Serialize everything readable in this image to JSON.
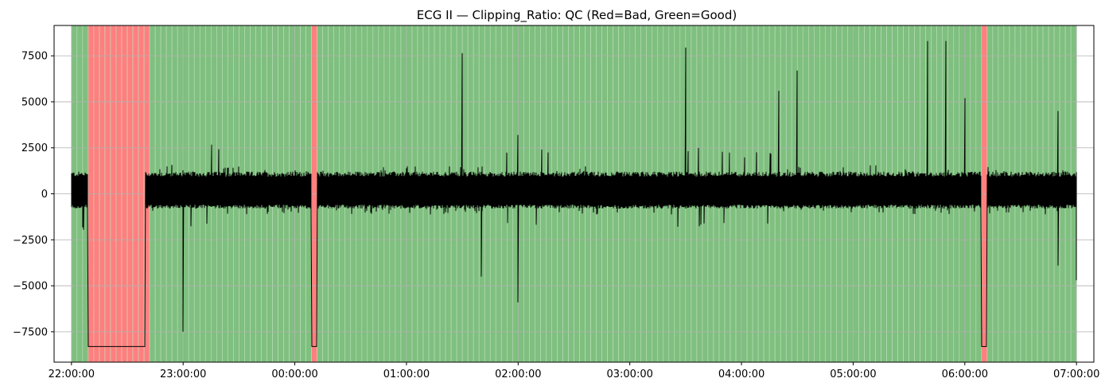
{
  "chart_data": {
    "type": "line",
    "title": "ECG II — Clipping_Ratio: QC (Red=Bad, Green=Good)",
    "xlabel": "",
    "ylabel": "",
    "x_start": "22:00:00",
    "x_end": "07:00:00",
    "xlim": [
      "21:50:40",
      "07:09:20"
    ],
    "ylim": [
      -9150,
      9150
    ],
    "x_ticks": [
      "22:00:00",
      "23:00:00",
      "00:00:00",
      "01:00:00",
      "02:00:00",
      "03:00:00",
      "04:00:00",
      "05:00:00",
      "06:00:00",
      "07:00:00"
    ],
    "y_ticks": [
      7500,
      5000,
      2500,
      0,
      -2500,
      -5000,
      -7500
    ],
    "y_tick_labels": [
      "7500",
      "5000",
      "2500",
      "0",
      "−2500",
      "−5000",
      "−7500"
    ],
    "grid": true,
    "segment_minutes": 3,
    "qc_colors": {
      "good": "#7fbf7f",
      "bad": "#ff7f7f",
      "separator": "#bfe0bf"
    },
    "line_color": "#000000",
    "bad_segments": [
      {
        "start": "22:09:00",
        "end": "22:39:30"
      },
      {
        "start": "00:09:00",
        "end": "00:12:00"
      },
      {
        "start": "06:09:00",
        "end": "06:12:00"
      }
    ],
    "clipped_value": -8300,
    "baseline_band": {
      "upper": 1100,
      "lower": -700
    },
    "notable_peaks": [
      {
        "time": "01:30:00",
        "value": 7650
      },
      {
        "time": "02:00:00",
        "value": 3200
      },
      {
        "time": "03:30:00",
        "value": 7950
      },
      {
        "time": "04:20:00",
        "value": 5600
      },
      {
        "time": "04:30:00",
        "value": 6700
      },
      {
        "time": "05:40:00",
        "value": 8300
      },
      {
        "time": "05:50:00",
        "value": 8300
      },
      {
        "time": "06:00:00",
        "value": 5200
      },
      {
        "time": "06:50:00",
        "value": 4500
      }
    ],
    "notable_troughs": [
      {
        "time": "23:00:00",
        "value": -7500
      },
      {
        "time": "01:40:00",
        "value": -4500
      },
      {
        "time": "02:00:00",
        "value": -5900
      },
      {
        "time": "06:50:00",
        "value": -3900
      },
      {
        "time": "07:00:00",
        "value": -4700
      }
    ]
  }
}
